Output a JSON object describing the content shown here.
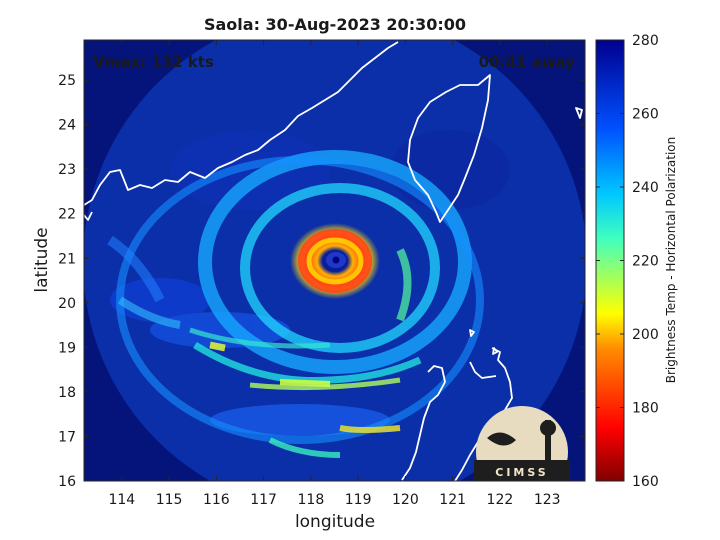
{
  "chart_data": {
    "type": "heatmap",
    "title": "Saola: 30-Aug-2023 20:30:00",
    "xlabel": "longitude",
    "ylabel": "latitude",
    "xlim": [
      113.2,
      123.8
    ],
    "ylim": [
      16.0,
      25.9
    ],
    "xticks": [
      "114",
      "115",
      "116",
      "117",
      "118",
      "119",
      "120",
      "121",
      "122",
      "123"
    ],
    "yticks": [
      "16",
      "17",
      "18",
      "19",
      "20",
      "21",
      "22",
      "23",
      "24",
      "25"
    ],
    "annotations": {
      "vmax": "Vmax: 132 kts",
      "timing": "00:41 away",
      "logo_text": "CIMSS"
    },
    "colorbar": {
      "label": "Brightness Temp - Horizontal Polarization",
      "range": [
        160,
        280
      ],
      "ticks": [
        "160",
        "180",
        "200",
        "220",
        "240",
        "260",
        "280"
      ],
      "colormap": "jet"
    },
    "storm": {
      "name": "Saola",
      "eye_lon": 118.45,
      "eye_lat": 20.95,
      "eye_tb": 262,
      "eyewall_tb": 190,
      "background_tb": 262
    },
    "swath": {
      "center_lon": 118.45,
      "center_lat": 20.95,
      "shape": "circle"
    },
    "grid": false
  },
  "colors": {
    "background_ocean": "#0a2fa8",
    "outside_swath": "#05147a",
    "coastline": "#ffffff"
  }
}
